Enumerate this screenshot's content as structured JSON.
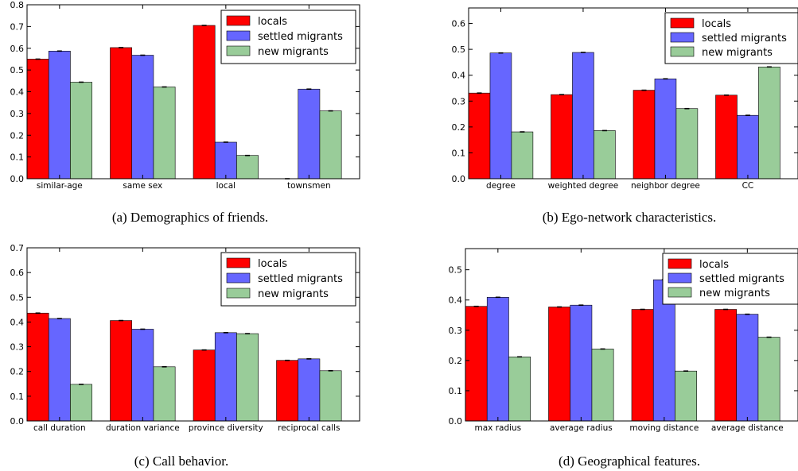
{
  "colors": {
    "locals": "#ff0000",
    "settled_migrants": "#6666ff",
    "new_migrants": "#99cc99"
  },
  "legend": [
    "locals",
    "settled migrants",
    "new migrants"
  ],
  "captions": [
    "(a)  Demographics of friends.",
    "(b)  Ego-network characteristics.",
    "(c)  Call behavior.",
    "(d)  Geographical features."
  ],
  "chart_data": [
    {
      "type": "bar",
      "categories": [
        "similar-age",
        "same sex",
        "local",
        "townsmen"
      ],
      "series": [
        {
          "name": "locals",
          "values": [
            0.55,
            0.603,
            0.705,
            0.0
          ]
        },
        {
          "name": "settled migrants",
          "values": [
            0.587,
            0.568,
            0.168,
            0.412
          ]
        },
        {
          "name": "new migrants",
          "values": [
            0.444,
            0.422,
            0.107,
            0.312
          ]
        }
      ],
      "ylim": [
        0.0,
        0.8
      ],
      "yticks": [
        "0.0",
        "0.1",
        "0.2",
        "0.3",
        "0.4",
        "0.5",
        "0.6",
        "0.7",
        "0.8"
      ],
      "legend_position": "top-right",
      "caption": "(a)  Demographics of friends."
    },
    {
      "type": "bar",
      "categories": [
        "degree",
        "weighted degree",
        "neighbor degree",
        "CC"
      ],
      "series": [
        {
          "name": "locals",
          "values": [
            0.331,
            0.325,
            0.342,
            0.323
          ]
        },
        {
          "name": "settled migrants",
          "values": [
            0.486,
            0.488,
            0.386,
            0.245
          ]
        },
        {
          "name": "new migrants",
          "values": [
            0.181,
            0.186,
            0.271,
            0.432
          ]
        }
      ],
      "ylim": [
        0.0,
        0.66
      ],
      "yticks": [
        "0.0",
        "0.1",
        "0.2",
        "0.3",
        "0.4",
        "0.5",
        "0.6"
      ],
      "legend_position": "top-right",
      "caption": "(b)  Ego-network characteristics."
    },
    {
      "type": "bar",
      "categories": [
        "call duration",
        "duration variance",
        "province diversity",
        "reciprocal calls"
      ],
      "series": [
        {
          "name": "locals",
          "values": [
            0.436,
            0.406,
            0.287,
            0.245
          ]
        },
        {
          "name": "settled migrants",
          "values": [
            0.414,
            0.371,
            0.357,
            0.251
          ]
        },
        {
          "name": "new migrants",
          "values": [
            0.148,
            0.219,
            0.353,
            0.203
          ]
        }
      ],
      "ylim": [
        0.0,
        0.7
      ],
      "yticks": [
        "0.0",
        "0.1",
        "0.2",
        "0.3",
        "0.4",
        "0.5",
        "0.6",
        "0.7"
      ],
      "legend_position": "top-right",
      "caption": "(c)  Call behavior."
    },
    {
      "type": "bar",
      "categories": [
        "max radius",
        "average radius",
        "moving distance",
        "average distance"
      ],
      "series": [
        {
          "name": "locals",
          "values": [
            0.379,
            0.377,
            0.369,
            0.369
          ]
        },
        {
          "name": "settled migrants",
          "values": [
            0.409,
            0.383,
            0.467,
            0.353
          ]
        },
        {
          "name": "new migrants",
          "values": [
            0.212,
            0.238,
            0.165,
            0.277
          ]
        }
      ],
      "ylim": [
        0.0,
        0.57
      ],
      "yticks": [
        "0.0",
        "0.1",
        "0.2",
        "0.3",
        "0.4",
        "0.5"
      ],
      "legend_position": "top-right",
      "caption": "(d)  Geographical features."
    }
  ]
}
